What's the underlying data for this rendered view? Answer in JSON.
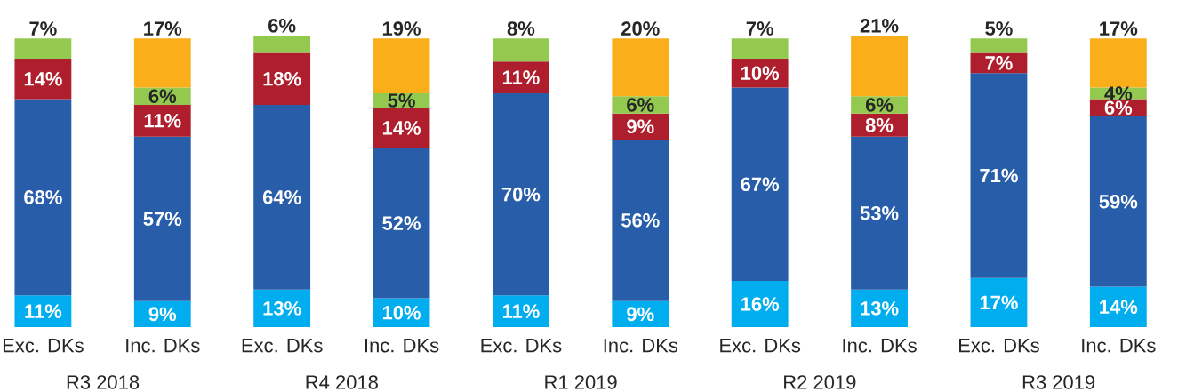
{
  "chart_data": {
    "type": "bar",
    "stacked": true,
    "categories": [
      "Exc. DKs",
      "Inc. DKs",
      "Exc. DKs",
      "Inc. DKs",
      "Exc. DKs",
      "Inc. DKs",
      "Exc. DKs",
      "Inc. DKs",
      "Exc. DKs",
      "Inc. DKs"
    ],
    "series": [
      {
        "color": "#00aeef",
        "values": [
          11,
          9,
          13,
          10,
          11,
          9,
          16,
          13,
          17,
          14
        ],
        "value_labels": [
          "11%",
          "9%",
          "13%",
          "10%",
          "11%",
          "9%",
          "16%",
          "13%",
          "17%",
          "14%"
        ]
      },
      {
        "color": "#275da9",
        "values": [
          68,
          57,
          64,
          52,
          70,
          56,
          67,
          53,
          71,
          59
        ],
        "value_labels": [
          "68%",
          "57%",
          "64%",
          "52%",
          "70%",
          "56%",
          "67%",
          "53%",
          "71%",
          "59%"
        ]
      },
      {
        "color": "#ae1e2d",
        "values": [
          14,
          11,
          18,
          14,
          11,
          9,
          10,
          8,
          7,
          6
        ],
        "value_labels": [
          "14%",
          "11%",
          "18%",
          "14%",
          "11%",
          "9%",
          "10%",
          "8%",
          "7%",
          "6%"
        ]
      },
      {
        "color": "#94c94f",
        "values": [
          7,
          6,
          6,
          5,
          8,
          6,
          7,
          6,
          5,
          4
        ],
        "value_labels": [
          "7%",
          "6%",
          "6%",
          "5%",
          "8%",
          "6%",
          "7%",
          "6%",
          "5%",
          "4%"
        ]
      },
      {
        "color": "#f9ae1a",
        "values": [
          null,
          17,
          null,
          19,
          null,
          20,
          null,
          21,
          null,
          17
        ],
        "value_labels": [
          null,
          "17%",
          null,
          "19%",
          null,
          "20%",
          null,
          "21%",
          null,
          "17%"
        ]
      }
    ],
    "annotations": [
      "R3 2018",
      "R4 2018",
      "R1 2019",
      "R2 2019",
      "R3 2019"
    ]
  }
}
